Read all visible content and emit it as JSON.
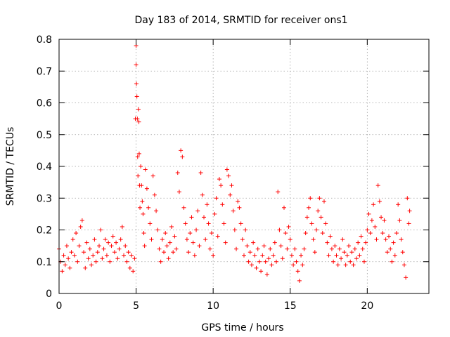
{
  "chart_data": {
    "type": "scatter",
    "title": "Day 183 of 2014, SRMTID for receiver ons1",
    "xlabel": "GPS time / hours",
    "ylabel": "SRMTID / TECUs",
    "xlim": [
      0,
      24
    ],
    "ylim": [
      0,
      0.8
    ],
    "xticks": [
      0,
      5,
      10,
      15,
      20
    ],
    "xtick_labels": [
      "0",
      "5",
      "10",
      "15",
      "20"
    ],
    "yticks": [
      0,
      0.1,
      0.2,
      0.3,
      0.4,
      0.5,
      0.6,
      0.7,
      0.8
    ],
    "ytick_labels": [
      "0",
      "0.1",
      "0.2",
      "0.3",
      "0.4",
      "0.5",
      "0.6",
      "0.7",
      "0.8"
    ],
    "grid": true,
    "marker": "+",
    "color": "#ff0000",
    "data_range_hours": [
      0,
      22.75
    ],
    "series": [
      {
        "name": "SRMTID",
        "points": [
          [
            0.0,
            0.14
          ],
          [
            0.1,
            0.1
          ],
          [
            0.2,
            0.07
          ],
          [
            0.3,
            0.12
          ],
          [
            0.4,
            0.09
          ],
          [
            0.5,
            0.15
          ],
          [
            0.6,
            0.11
          ],
          [
            0.7,
            0.08
          ],
          [
            0.8,
            0.13
          ],
          [
            0.9,
            0.17
          ],
          [
            1.0,
            0.12
          ],
          [
            1.1,
            0.19
          ],
          [
            1.2,
            0.1
          ],
          [
            1.3,
            0.15
          ],
          [
            1.4,
            0.21
          ],
          [
            1.5,
            0.23
          ],
          [
            1.6,
            0.13
          ],
          [
            1.7,
            0.08
          ],
          [
            1.8,
            0.16
          ],
          [
            1.9,
            0.11
          ],
          [
            2.0,
            0.14
          ],
          [
            2.1,
            0.09
          ],
          [
            2.2,
            0.12
          ],
          [
            2.3,
            0.17
          ],
          [
            2.4,
            0.1
          ],
          [
            2.5,
            0.13
          ],
          [
            2.6,
            0.15
          ],
          [
            2.7,
            0.2
          ],
          [
            2.8,
            0.11
          ],
          [
            2.9,
            0.14
          ],
          [
            3.0,
            0.17
          ],
          [
            3.1,
            0.12
          ],
          [
            3.2,
            0.16
          ],
          [
            3.3,
            0.1
          ],
          [
            3.4,
            0.15
          ],
          [
            3.5,
            0.18
          ],
          [
            3.6,
            0.13
          ],
          [
            3.7,
            0.16
          ],
          [
            3.8,
            0.11
          ],
          [
            3.9,
            0.14
          ],
          [
            4.0,
            0.17
          ],
          [
            4.1,
            0.21
          ],
          [
            4.2,
            0.12
          ],
          [
            4.3,
            0.15
          ],
          [
            4.4,
            0.1
          ],
          [
            4.5,
            0.13
          ],
          [
            4.6,
            0.08
          ],
          [
            4.7,
            0.12
          ],
          [
            4.8,
            0.07
          ],
          [
            4.9,
            0.11
          ],
          [
            4.95,
            0.55
          ],
          [
            5.0,
            0.78
          ],
          [
            5.0,
            0.72
          ],
          [
            5.02,
            0.66
          ],
          [
            5.05,
            0.62
          ],
          [
            5.08,
            0.55
          ],
          [
            5.1,
            0.43
          ],
          [
            5.12,
            0.37
          ],
          [
            5.15,
            0.58
          ],
          [
            5.18,
            0.54
          ],
          [
            5.2,
            0.44
          ],
          [
            5.22,
            0.34
          ],
          [
            5.25,
            0.27
          ],
          [
            5.3,
            0.4
          ],
          [
            5.35,
            0.34
          ],
          [
            5.4,
            0.29
          ],
          [
            5.45,
            0.25
          ],
          [
            5.5,
            0.19
          ],
          [
            5.55,
            0.15
          ],
          [
            5.6,
            0.39
          ],
          [
            5.7,
            0.33
          ],
          [
            5.8,
            0.27
          ],
          [
            5.9,
            0.22
          ],
          [
            6.0,
            0.17
          ],
          [
            6.1,
            0.37
          ],
          [
            6.2,
            0.31
          ],
          [
            6.3,
            0.26
          ],
          [
            6.4,
            0.2
          ],
          [
            6.5,
            0.14
          ],
          [
            6.6,
            0.1
          ],
          [
            6.7,
            0.17
          ],
          [
            6.8,
            0.13
          ],
          [
            6.9,
            0.19
          ],
          [
            7.0,
            0.15
          ],
          [
            7.1,
            0.11
          ],
          [
            7.2,
            0.16
          ],
          [
            7.3,
            0.21
          ],
          [
            7.4,
            0.13
          ],
          [
            7.5,
            0.18
          ],
          [
            7.6,
            0.14
          ],
          [
            7.7,
            0.38
          ],
          [
            7.8,
            0.32
          ],
          [
            7.9,
            0.45
          ],
          [
            8.0,
            0.43
          ],
          [
            8.1,
            0.27
          ],
          [
            8.2,
            0.22
          ],
          [
            8.3,
            0.17
          ],
          [
            8.4,
            0.13
          ],
          [
            8.5,
            0.19
          ],
          [
            8.6,
            0.24
          ],
          [
            8.7,
            0.16
          ],
          [
            8.8,
            0.12
          ],
          [
            8.9,
            0.2
          ],
          [
            9.0,
            0.26
          ],
          [
            9.1,
            0.15
          ],
          [
            9.2,
            0.38
          ],
          [
            9.3,
            0.31
          ],
          [
            9.4,
            0.24
          ],
          [
            9.5,
            0.17
          ],
          [
            9.6,
            0.28
          ],
          [
            9.7,
            0.22
          ],
          [
            9.8,
            0.14
          ],
          [
            9.9,
            0.19
          ],
          [
            10.0,
            0.12
          ],
          [
            10.1,
            0.25
          ],
          [
            10.2,
            0.3
          ],
          [
            10.3,
            0.18
          ],
          [
            10.4,
            0.36
          ],
          [
            10.5,
            0.34
          ],
          [
            10.6,
            0.28
          ],
          [
            10.7,
            0.22
          ],
          [
            10.8,
            0.16
          ],
          [
            10.9,
            0.39
          ],
          [
            11.0,
            0.37
          ],
          [
            11.1,
            0.31
          ],
          [
            11.2,
            0.34
          ],
          [
            11.3,
            0.26
          ],
          [
            11.4,
            0.2
          ],
          [
            11.5,
            0.14
          ],
          [
            11.6,
            0.29
          ],
          [
            11.7,
            0.27
          ],
          [
            11.8,
            0.22
          ],
          [
            11.9,
            0.17
          ],
          [
            12.0,
            0.12
          ],
          [
            12.1,
            0.2
          ],
          [
            12.2,
            0.15
          ],
          [
            12.3,
            0.1
          ],
          [
            12.4,
            0.13
          ],
          [
            12.5,
            0.09
          ],
          [
            12.6,
            0.16
          ],
          [
            12.7,
            0.12
          ],
          [
            12.8,
            0.08
          ],
          [
            12.9,
            0.14
          ],
          [
            13.0,
            0.1
          ],
          [
            13.1,
            0.07
          ],
          [
            13.2,
            0.12
          ],
          [
            13.3,
            0.15
          ],
          [
            13.4,
            0.1
          ],
          [
            13.5,
            0.06
          ],
          [
            13.6,
            0.11
          ],
          [
            13.7,
            0.14
          ],
          [
            13.8,
            0.09
          ],
          [
            13.9,
            0.12
          ],
          [
            14.0,
            0.16
          ],
          [
            14.1,
            0.1
          ],
          [
            14.2,
            0.32
          ],
          [
            14.3,
            0.2
          ],
          [
            14.4,
            0.15
          ],
          [
            14.5,
            0.11
          ],
          [
            14.6,
            0.27
          ],
          [
            14.7,
            0.19
          ],
          [
            14.8,
            0.14
          ],
          [
            14.9,
            0.21
          ],
          [
            15.0,
            0.17
          ],
          [
            15.1,
            0.12
          ],
          [
            15.2,
            0.09
          ],
          [
            15.3,
            0.14
          ],
          [
            15.4,
            0.1
          ],
          [
            15.5,
            0.07
          ],
          [
            15.6,
            0.04
          ],
          [
            15.7,
            0.12
          ],
          [
            15.8,
            0.09
          ],
          [
            15.9,
            0.14
          ],
          [
            16.0,
            0.19
          ],
          [
            16.1,
            0.24
          ],
          [
            16.2,
            0.27
          ],
          [
            16.3,
            0.3
          ],
          [
            16.4,
            0.22
          ],
          [
            16.5,
            0.17
          ],
          [
            16.6,
            0.13
          ],
          [
            16.7,
            0.2
          ],
          [
            16.8,
            0.26
          ],
          [
            16.9,
            0.3
          ],
          [
            17.0,
            0.24
          ],
          [
            17.1,
            0.19
          ],
          [
            17.2,
            0.29
          ],
          [
            17.3,
            0.22
          ],
          [
            17.4,
            0.16
          ],
          [
            17.5,
            0.12
          ],
          [
            17.6,
            0.18
          ],
          [
            17.7,
            0.14
          ],
          [
            17.8,
            0.1
          ],
          [
            17.9,
            0.15
          ],
          [
            18.0,
            0.12
          ],
          [
            18.1,
            0.09
          ],
          [
            18.2,
            0.14
          ],
          [
            18.3,
            0.11
          ],
          [
            18.4,
            0.17
          ],
          [
            18.5,
            0.13
          ],
          [
            18.6,
            0.09
          ],
          [
            18.7,
            0.12
          ],
          [
            18.8,
            0.15
          ],
          [
            18.9,
            0.1
          ],
          [
            19.0,
            0.13
          ],
          [
            19.1,
            0.09
          ],
          [
            19.2,
            0.14
          ],
          [
            19.3,
            0.11
          ],
          [
            19.4,
            0.16
          ],
          [
            19.5,
            0.12
          ],
          [
            19.6,
            0.18
          ],
          [
            19.7,
            0.14
          ],
          [
            19.8,
            0.1
          ],
          [
            19.9,
            0.16
          ],
          [
            20.0,
            0.2
          ],
          [
            20.1,
            0.25
          ],
          [
            20.2,
            0.19
          ],
          [
            20.3,
            0.23
          ],
          [
            20.4,
            0.28
          ],
          [
            20.5,
            0.21
          ],
          [
            20.6,
            0.17
          ],
          [
            20.7,
            0.34
          ],
          [
            20.8,
            0.29
          ],
          [
            20.9,
            0.24
          ],
          [
            21.0,
            0.19
          ],
          [
            21.1,
            0.23
          ],
          [
            21.2,
            0.17
          ],
          [
            21.3,
            0.13
          ],
          [
            21.4,
            0.18
          ],
          [
            21.5,
            0.14
          ],
          [
            21.6,
            0.1
          ],
          [
            21.7,
            0.16
          ],
          [
            21.8,
            0.12
          ],
          [
            21.9,
            0.19
          ],
          [
            22.0,
            0.28
          ],
          [
            22.1,
            0.23
          ],
          [
            22.2,
            0.17
          ],
          [
            22.3,
            0.13
          ],
          [
            22.4,
            0.09
          ],
          [
            22.5,
            0.05
          ],
          [
            22.6,
            0.3
          ],
          [
            22.7,
            0.22
          ],
          [
            22.75,
            0.26
          ]
        ]
      }
    ]
  }
}
